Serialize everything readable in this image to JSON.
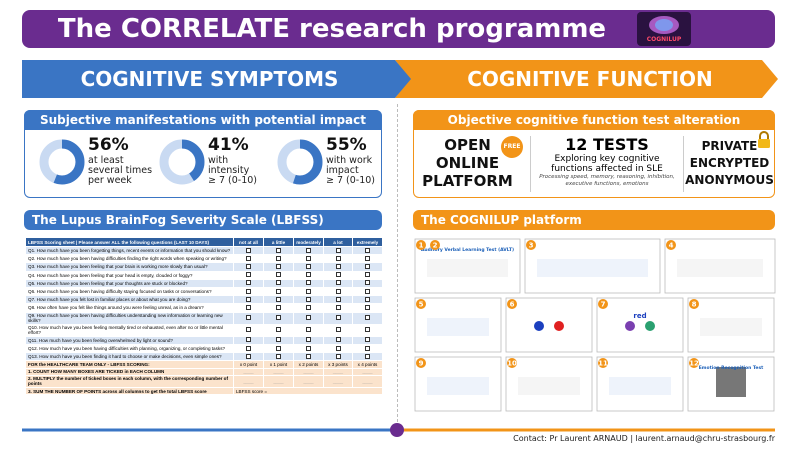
{
  "header": {
    "title": "The CORRELATE research programme",
    "logo_text": "COGNILUP"
  },
  "left": {
    "banner": "COGNITIVE SYMPTOMS",
    "stats_title": "Subjective manifestations with potential impact",
    "stats": [
      {
        "value": 56,
        "value_label": "56%",
        "lines": [
          "at least",
          "several times",
          "per week"
        ]
      },
      {
        "value": 41,
        "value_label": "41%",
        "lines": [
          "with",
          "intensity",
          "≥ 7 (0-10)"
        ]
      },
      {
        "value": 55,
        "value_label": "55%",
        "lines": [
          "with work",
          "impact",
          "≥ 7 (0-10)"
        ]
      }
    ],
    "scale_title": "The Lupus BrainFog Severity Scale (LBFSS)",
    "table": {
      "header": [
        "LBFSS Scoring sheet | Please answer ALL the following questions (LAST 10 DAYS)",
        "not at all",
        "a little",
        "moderately",
        "a lot",
        "extremely"
      ],
      "questions": [
        "Q1. How much have you been forgetting things, recent events or information that you should know?",
        "Q2. How much have you been having difficulties finding the right words when speaking or writing?",
        "Q3. How much have you been feeling that your brain is working more slowly than usual?",
        "Q4. How much have you been feeling that your head is empty, clouded or foggy?",
        "Q5. How much have you been feeling that your thoughts are stuck or blocked?",
        "Q6. How much have you been having difficulty staying focused on tasks or conversations?",
        "Q7. How much have you felt lost in familiar places or about what you are doing?",
        "Q8. How often have you felt like things around you were feeling unreal, as in a dream?",
        "Q9. How much have you been having difficulties understanding new information or learning new skills?",
        "Q10. How much have you been feeling mentally tired or exhausted, even after no or little mental effort?",
        "Q11. How much have you been feeling overwhelmed by light or sound?",
        "Q12. How much have you been having difficulties with planning, organizing, or completing tasks?",
        "Q13. How much have you been finding it hard to choose or make decisions, even simple ones?"
      ],
      "scoring_title": "FOR the HEALTHCARE TEAM ONLY - LBFSS SCORING:",
      "points": [
        "x 0 point",
        "x 1 point",
        "x 2 points",
        "x 3 points",
        "x 4 points"
      ],
      "steps": [
        "1. COUNT HOW MANY BOXES ARE TICKED in EACH COLUMN",
        "2. MULTIPLY the number of ticked boxes in each column, with the corresponding number of points",
        "3. SUM THE NUMBER OF POINTS across all columns to get the total LBFSS score"
      ],
      "score_label": "LBFSS score ="
    }
  },
  "right": {
    "banner": "COGNITIVE FUNCTION",
    "test_title": "Objective cognitive function test alteration",
    "features": {
      "platform": [
        "OPEN",
        "ONLINE",
        "PLATFORM"
      ],
      "badge": "FREE",
      "tests_title": "12 TESTS",
      "tests_text": "Exploring key cognitive functions affected in SLE",
      "tests_detail": "Processing speed, memory, reasoning, inhibition, executive functions, emotions",
      "security": [
        "PRIVATE",
        "ENCRYPTED",
        "ANONYMOUS"
      ]
    },
    "platform_title": "The COGNILUP platform",
    "panels": [
      {
        "numbers": [
          1,
          2
        ],
        "texts": [
          "Auditory Verbal Learning Test (AVLT)"
        ]
      },
      {
        "numbers": [
          3
        ]
      },
      {
        "numbers": [
          4
        ]
      },
      {
        "numbers": [
          5
        ]
      },
      {
        "numbers": [
          6
        ]
      },
      {
        "numbers": [
          7
        ],
        "texts": [
          "red"
        ]
      },
      {
        "numbers": [
          8
        ]
      },
      {
        "numbers": [
          9
        ]
      },
      {
        "numbers": [
          10
        ]
      },
      {
        "numbers": [
          11
        ]
      },
      {
        "numbers": [
          12
        ],
        "texts": [
          "Emotion Recognition Test"
        ]
      }
    ]
  },
  "footer": {
    "contact": "Contact: Pr Laurent ARNAUD | laurent.arnaud@chru-strasbourg.fr"
  }
}
